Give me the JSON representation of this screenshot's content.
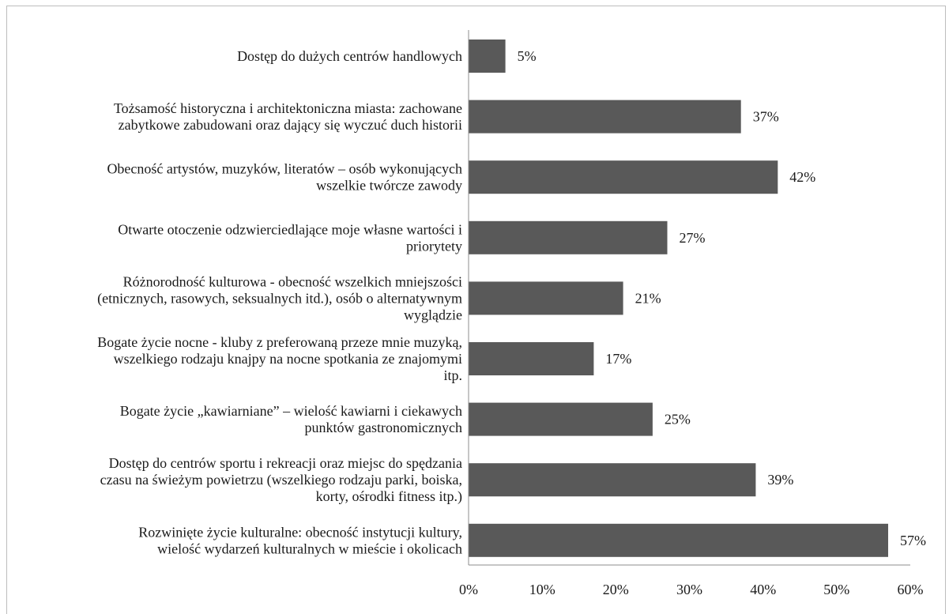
{
  "chart_data": {
    "type": "bar",
    "orientation": "horizontal",
    "title": "",
    "xlabel": "",
    "ylabel": "",
    "xlim": [
      0,
      60
    ],
    "x_ticks": [
      "0%",
      "10%",
      "20%",
      "30%",
      "40%",
      "50%",
      "60%"
    ],
    "grid": false,
    "legend": "none",
    "bar_color": "#595959",
    "categories": [
      [
        "Dostęp do dużych centrów handlowych"
      ],
      [
        "Tożsamość historyczna i architektoniczna miasta: zachowane",
        "zabytkowe zabudowani oraz dający się wyczuć duch historii"
      ],
      [
        "Obecność artystów, muzyków, literatów – osób wykonujących",
        "wszelkie twórcze zawody"
      ],
      [
        "Otwarte otoczenie odzwierciedlające moje własne wartości i",
        "priorytety"
      ],
      [
        "Różnorodność kulturowa - obecność wszelkich mniejszości",
        "(etnicznych, rasowych, seksualnych itd.), osób o alternatywnym",
        "wyglądzie"
      ],
      [
        "Bogate życie nocne - kluby z preferowaną przeze mnie muzyką,",
        "wszelkiego rodzaju knajpy na nocne spotkania ze znajomymi",
        "itp."
      ],
      [
        "Bogate życie „kawiarniane” – wielość kawiarni i ciekawych",
        "punktów gastronomicznych"
      ],
      [
        "Dostęp do centrów sportu i rekreacji oraz miejsc do spędzania",
        "czasu na świeżym powietrzu (wszelkiego rodzaju parki, boiska,",
        "korty, ośrodki fitness itp.)"
      ],
      [
        "Rozwinięte życie kulturalne: obecność instytucji kultury,",
        "wielość wydarzeń kulturalnych w mieście i okolicach"
      ]
    ],
    "values": [
      5,
      37,
      42,
      27,
      21,
      17,
      25,
      39,
      57
    ],
    "data_labels": [
      "5%",
      "37%",
      "42%",
      "27%",
      "21%",
      "17%",
      "25%",
      "39%",
      "57%"
    ]
  }
}
